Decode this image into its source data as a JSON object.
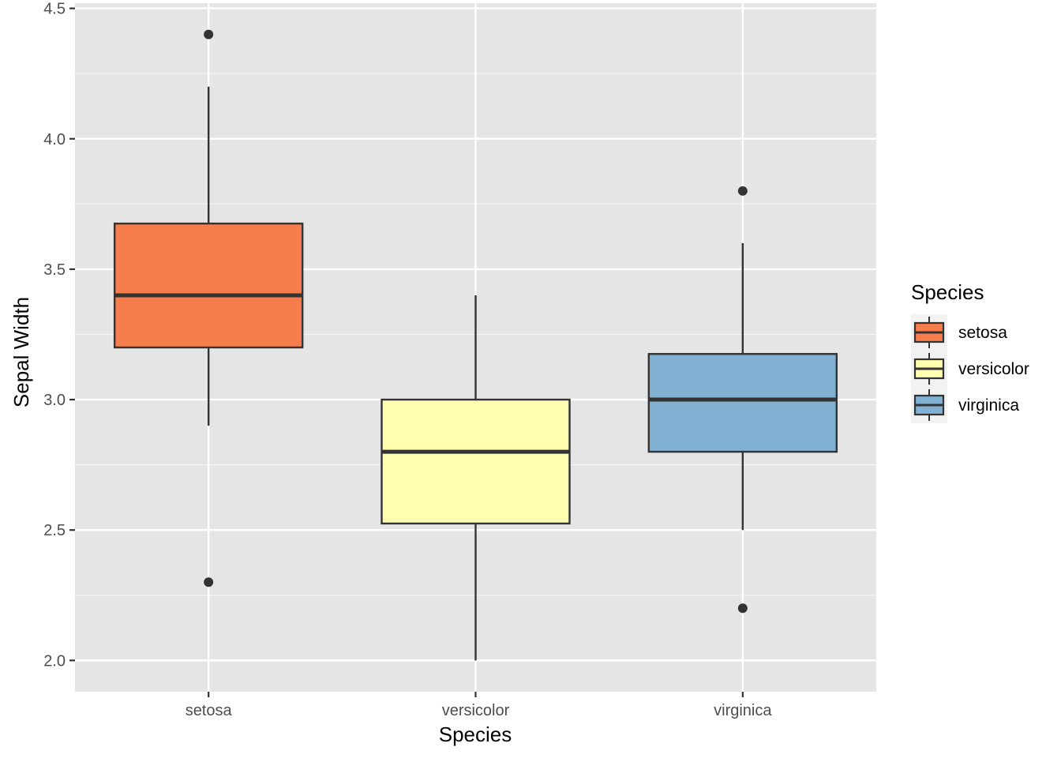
{
  "chart_data": {
    "type": "boxplot",
    "title": "",
    "xlabel": "Species",
    "ylabel": "Sepal Width",
    "ylim": [
      1.88,
      4.52
    ],
    "yticks": [
      "2.0",
      "2.5",
      "3.0",
      "3.5",
      "4.0",
      "4.5"
    ],
    "grid": true,
    "legend_position": "right",
    "legend_title": "Species",
    "categories": [
      "setosa",
      "versicolor",
      "virginica"
    ],
    "series": [
      {
        "name": "setosa",
        "color": "#f87d4c",
        "q1": 3.2,
        "median": 3.4,
        "q3": 3.675,
        "whisker_low": 2.9,
        "whisker_high": 4.2,
        "outliers": [
          4.4,
          2.3
        ]
      },
      {
        "name": "versicolor",
        "color": "#ffffaf",
        "q1": 2.525,
        "median": 2.8,
        "q3": 3.0,
        "whisker_low": 2.0,
        "whisker_high": 3.4,
        "outliers": []
      },
      {
        "name": "virginica",
        "color": "#80b1d3",
        "q1": 2.8,
        "median": 3.0,
        "q3": 3.175,
        "whisker_low": 2.5,
        "whisker_high": 3.6,
        "outliers": [
          3.8,
          2.2
        ]
      }
    ]
  }
}
